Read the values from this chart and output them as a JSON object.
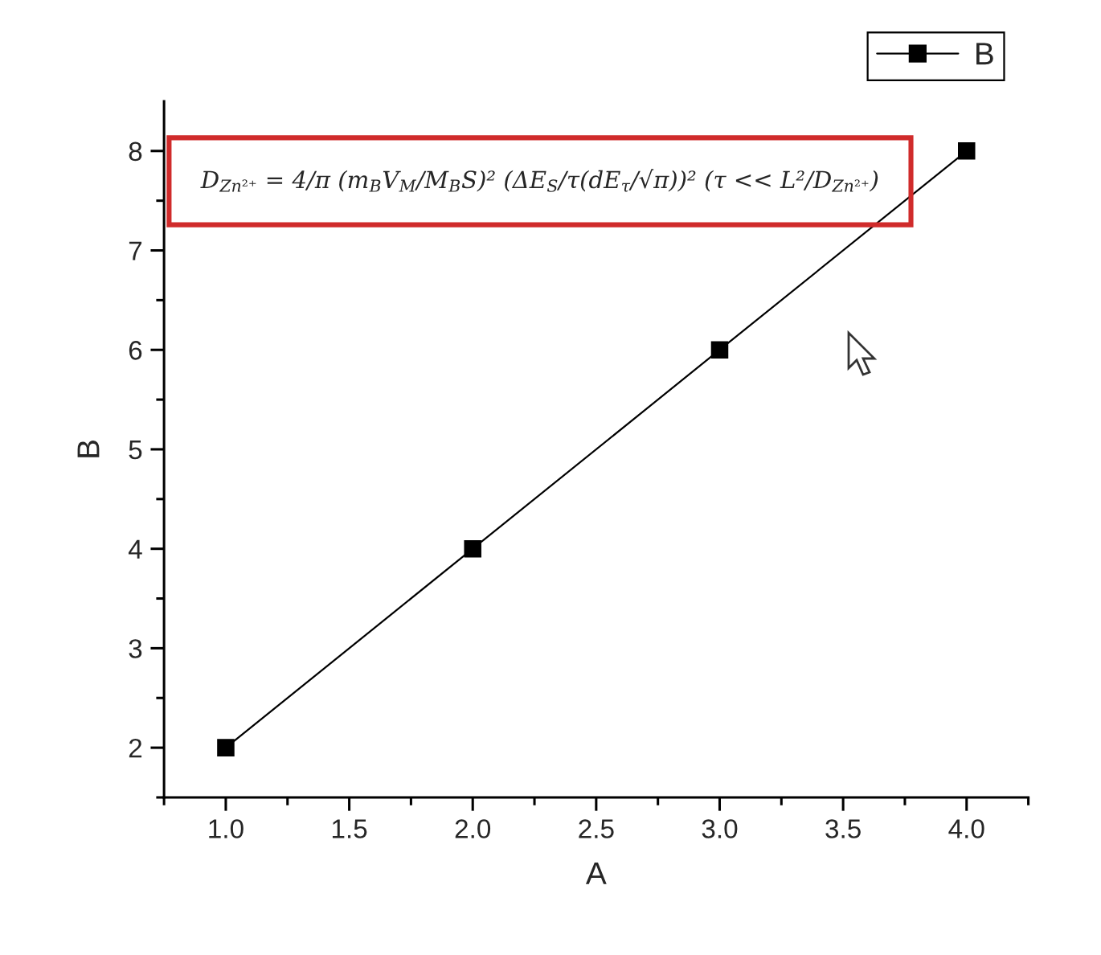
{
  "chart_data": {
    "type": "line",
    "xlabel": "A",
    "ylabel": "B",
    "x": [
      1,
      2,
      3,
      4
    ],
    "series": [
      {
        "name": "B",
        "color": "#000000",
        "values": [
          2,
          4,
          6,
          8
        ]
      }
    ],
    "marker": "square",
    "line_style": "solid",
    "legend": "top right",
    "xlim": [
      0.75,
      4.25
    ],
    "ylim": [
      1.5,
      8.5
    ],
    "xticks": [
      {
        "value": 0.75,
        "label": null
      },
      {
        "value": 1,
        "label": "1.0"
      },
      {
        "value": 1.25,
        "label": null
      },
      {
        "value": 1.5,
        "label": "1.5"
      },
      {
        "value": 1.75,
        "label": null
      },
      {
        "value": 2,
        "label": "2.0"
      },
      {
        "value": 2.25,
        "label": null
      },
      {
        "value": 2.5,
        "label": "2.5"
      },
      {
        "value": 2.75,
        "label": null
      },
      {
        "value": 3,
        "label": "3.0"
      },
      {
        "value": 3.25,
        "label": null
      },
      {
        "value": 3.5,
        "label": "3.5"
      },
      {
        "value": 3.75,
        "label": null
      },
      {
        "value": 4,
        "label": "4.0"
      },
      {
        "value": 4.25,
        "label": null
      }
    ],
    "yticks": [
      {
        "value": 1.5,
        "label": null
      },
      2,
      {
        "value": 2.5,
        "label": null
      },
      3,
      {
        "value": 3.5,
        "label": null
      },
      4,
      {
        "value": 4.5,
        "label": null
      },
      5,
      {
        "value": 5.5,
        "label": null
      },
      6,
      {
        "value": 6.5,
        "label": null
      },
      7,
      {
        "value": 7.5,
        "label": null
      },
      8
    ],
    "annotations": [
      "D$_{Zn²⁺}$ = 4/π (m$_{B}$V$_{M}$/M$_{B}$S)² (ΔE$_{S}$/τ(dE$_{τ}$/√π))² (τ << L²/D$_{Zn²⁺}$)"
    ]
  }
}
